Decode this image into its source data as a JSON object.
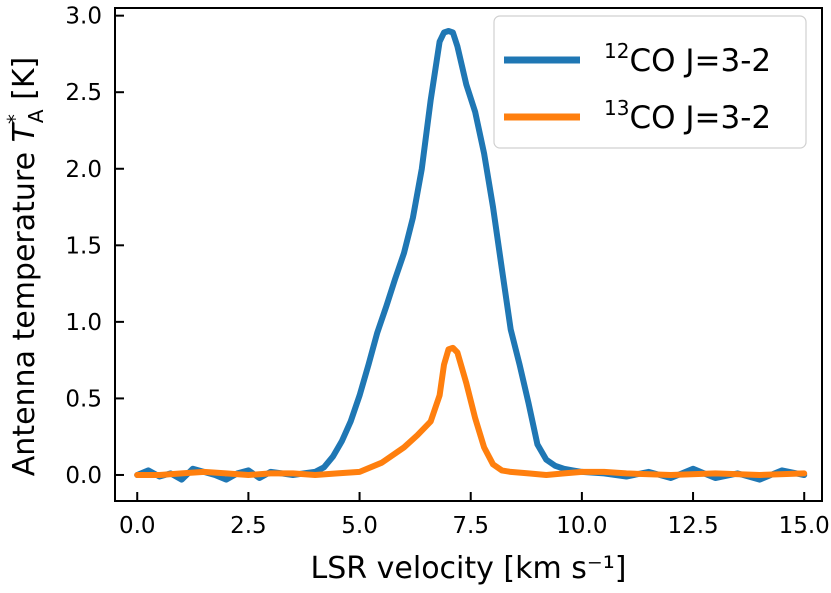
{
  "chart_data": {
    "type": "line",
    "xlabel": "LSR velocity [km s⁻¹]",
    "ylabel": {
      "prefix": "Antenna temperature ",
      "symbol": "T",
      "superscript": "*",
      "subscript": "A",
      "suffix": " [K]"
    },
    "xlim": [
      -0.5,
      15.4
    ],
    "ylim": [
      -0.17,
      3.05
    ],
    "xticks": [
      0.0,
      2.5,
      5.0,
      7.5,
      10.0,
      12.5,
      15.0
    ],
    "xtick_labels": [
      "0.0",
      "2.5",
      "5.0",
      "7.5",
      "10.0",
      "12.5",
      "15.0"
    ],
    "yticks": [
      0.0,
      0.5,
      1.0,
      1.5,
      2.0,
      2.5,
      3.0
    ],
    "ytick_labels": [
      "0.0",
      "0.5",
      "1.0",
      "1.5",
      "2.0",
      "2.5",
      "3.0"
    ],
    "grid": false,
    "legend_position": "top-right",
    "series": [
      {
        "name": "12CO J=3-2",
        "label_sup": "12",
        "label_main": "CO J=3-2",
        "color": "#1f77b4",
        "x": [
          0.0,
          0.25,
          0.5,
          0.75,
          1.0,
          1.25,
          1.5,
          1.75,
          2.0,
          2.25,
          2.5,
          2.75,
          3.0,
          3.25,
          3.5,
          3.75,
          4.0,
          4.2,
          4.4,
          4.6,
          4.8,
          5.0,
          5.2,
          5.4,
          5.6,
          5.8,
          6.0,
          6.2,
          6.4,
          6.6,
          6.8,
          6.9,
          7.0,
          7.1,
          7.2,
          7.4,
          7.6,
          7.8,
          8.0,
          8.2,
          8.4,
          8.6,
          8.8,
          9.0,
          9.2,
          9.4,
          9.6,
          9.8,
          10.0,
          10.5,
          11.0,
          11.5,
          12.0,
          12.5,
          13.0,
          13.5,
          14.0,
          14.5,
          15.0
        ],
        "y": [
          0.0,
          0.03,
          -0.01,
          0.01,
          -0.03,
          0.04,
          0.02,
          0.0,
          -0.03,
          0.01,
          0.03,
          -0.02,
          0.02,
          0.01,
          0.0,
          0.01,
          0.02,
          0.05,
          0.12,
          0.22,
          0.35,
          0.52,
          0.72,
          0.93,
          1.1,
          1.28,
          1.45,
          1.68,
          2.0,
          2.45,
          2.83,
          2.89,
          2.9,
          2.89,
          2.8,
          2.55,
          2.37,
          2.1,
          1.75,
          1.35,
          0.95,
          0.72,
          0.47,
          0.2,
          0.1,
          0.06,
          0.04,
          0.03,
          0.02,
          0.01,
          -0.01,
          0.02,
          -0.02,
          0.04,
          -0.02,
          0.01,
          -0.03,
          0.03,
          0.0
        ]
      },
      {
        "name": "13CO J=3-2",
        "label_sup": "13",
        "label_main": "CO J=3-2",
        "color": "#ff7f0e",
        "x": [
          0.0,
          0.5,
          1.0,
          1.5,
          2.0,
          2.5,
          3.0,
          3.5,
          4.0,
          4.5,
          5.0,
          5.5,
          6.0,
          6.3,
          6.6,
          6.8,
          6.9,
          7.0,
          7.1,
          7.2,
          7.4,
          7.6,
          7.8,
          8.0,
          8.2,
          8.4,
          8.8,
          9.2,
          9.6,
          10.0,
          10.5,
          11.0,
          12.0,
          13.0,
          14.0,
          15.0
        ],
        "y": [
          0.0,
          0.0,
          0.01,
          0.02,
          0.01,
          0.0,
          0.01,
          0.01,
          0.0,
          0.01,
          0.02,
          0.08,
          0.18,
          0.26,
          0.35,
          0.52,
          0.72,
          0.82,
          0.83,
          0.8,
          0.6,
          0.37,
          0.18,
          0.07,
          0.03,
          0.02,
          0.01,
          0.0,
          0.01,
          0.02,
          0.02,
          0.01,
          0.0,
          0.01,
          0.0,
          0.01
        ]
      }
    ]
  }
}
